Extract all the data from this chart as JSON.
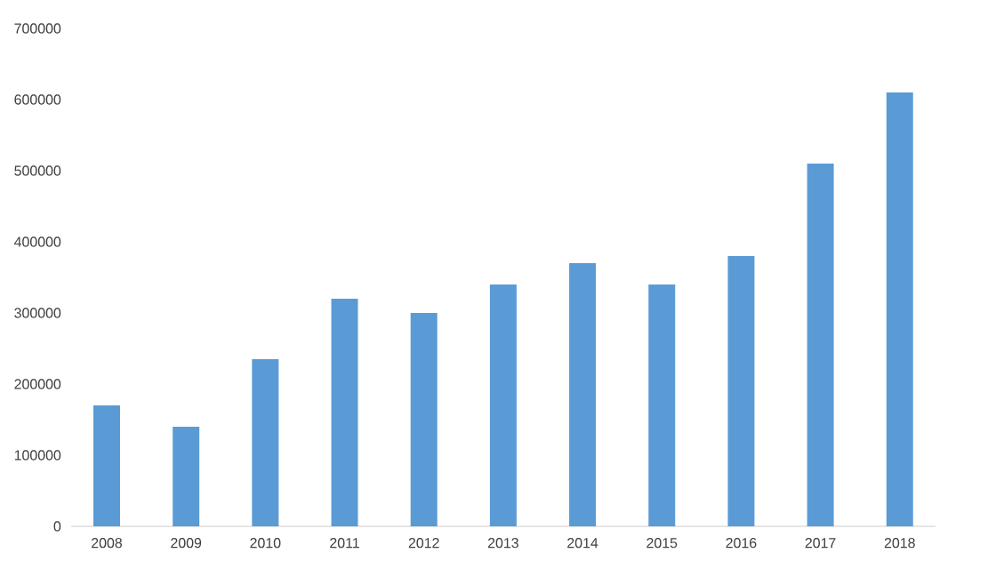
{
  "chart_data": {
    "type": "bar",
    "categories": [
      "2008",
      "2009",
      "2010",
      "2011",
      "2012",
      "2013",
      "2014",
      "2015",
      "2016",
      "2017",
      "2018"
    ],
    "values": [
      170000,
      140000,
      235000,
      320000,
      300000,
      340000,
      370000,
      340000,
      380000,
      510000,
      610000
    ],
    "color": "#5b9bd5",
    "ylim": [
      0,
      700000
    ],
    "yticks": [
      0,
      100000,
      200000,
      300000,
      400000,
      500000,
      600000,
      700000
    ]
  }
}
